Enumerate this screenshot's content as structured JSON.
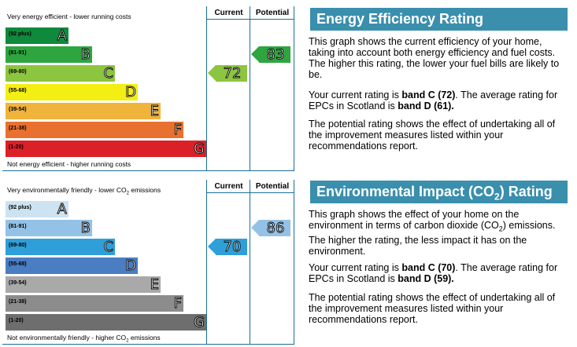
{
  "energy": {
    "top_label": "Very energy efficient - lower running costs",
    "bottom_label": "Not energy efficient - higher running costs",
    "current_header": "Current",
    "potential_header": "Potential",
    "bands": [
      {
        "range": "(92 plus)",
        "letter": "A",
        "color": "#0f8a3c"
      },
      {
        "range": "(81-91)",
        "letter": "B",
        "color": "#2ea53f"
      },
      {
        "range": "(69-80)",
        "letter": "C",
        "color": "#8cc53f"
      },
      {
        "range": "(55-68)",
        "letter": "D",
        "color": "#f4ef13"
      },
      {
        "range": "(39-54)",
        "letter": "E",
        "color": "#f0b33c"
      },
      {
        "range": "(21-38)",
        "letter": "F",
        "color": "#e8712f"
      },
      {
        "range": "(1-20)",
        "letter": "G",
        "color": "#db2027"
      }
    ],
    "current": {
      "value": "72",
      "band": "C",
      "color": "#8cc53f"
    },
    "potential": {
      "value": "83",
      "band": "B",
      "color": "#2ea53f"
    },
    "title": "Energy Efficiency Rating",
    "para1": "This graph shows the current efficiency of your home, taking into account both energy efficiency and fuel costs. The higher this rating, the lower your fuel bills are likely to be.",
    "para2_prefix": "Your current rating is ",
    "para2_band": "band C (72)",
    "para2_mid": ". The average rating for EPCs in Scotland is ",
    "para2_avg": "band D (61).",
    "para3": "The potential rating shows the effect of undertaking all of the improvement measures listed within your recommendations report."
  },
  "env": {
    "top_label_pre": "Very environmentally friendly - lower CO",
    "top_label_sub": "2",
    "top_label_post": " emissions",
    "bottom_label_pre": "Not environmentally friendly - higher CO",
    "bottom_label_sub": "2",
    "bottom_label_post": " emissions",
    "current_header": "Current",
    "potential_header": "Potential",
    "bands": [
      {
        "range": "(92 plus)",
        "letter": "A",
        "color": "#cde3f2"
      },
      {
        "range": "(81-91)",
        "letter": "B",
        "color": "#93c2e6"
      },
      {
        "range": "(69-80)",
        "letter": "C",
        "color": "#2f9fd9"
      },
      {
        "range": "(55-68)",
        "letter": "D",
        "color": "#4a7dc1"
      },
      {
        "range": "(39-54)",
        "letter": "E",
        "color": "#a9a9a9"
      },
      {
        "range": "(21-38)",
        "letter": "F",
        "color": "#8c8c8c"
      },
      {
        "range": "(1-20)",
        "letter": "G",
        "color": "#6e6e6e"
      }
    ],
    "current": {
      "value": "70",
      "band": "C",
      "color": "#2f9fd9"
    },
    "potential": {
      "value": "86",
      "band": "B",
      "color": "#93c2e6"
    },
    "title_pre": "Environmental Impact (CO",
    "title_sub": "2",
    "title_post": ") Rating",
    "para1_pre": "This graph shows the effect of your home on the environment in terms of carbon dioxide (CO",
    "para1_sub": "2",
    "para1_post": ") emissions. The higher the rating, the less impact it has on the environment.",
    "para2_prefix": "Your current rating is ",
    "para2_band": "band C (70)",
    "para2_mid": ". The average rating for EPCs in Scotland is ",
    "para2_avg": "band D (59).",
    "para3": "The potential rating shows the effect of undertaking all of the improvement measures listed within your recommendations report."
  }
}
